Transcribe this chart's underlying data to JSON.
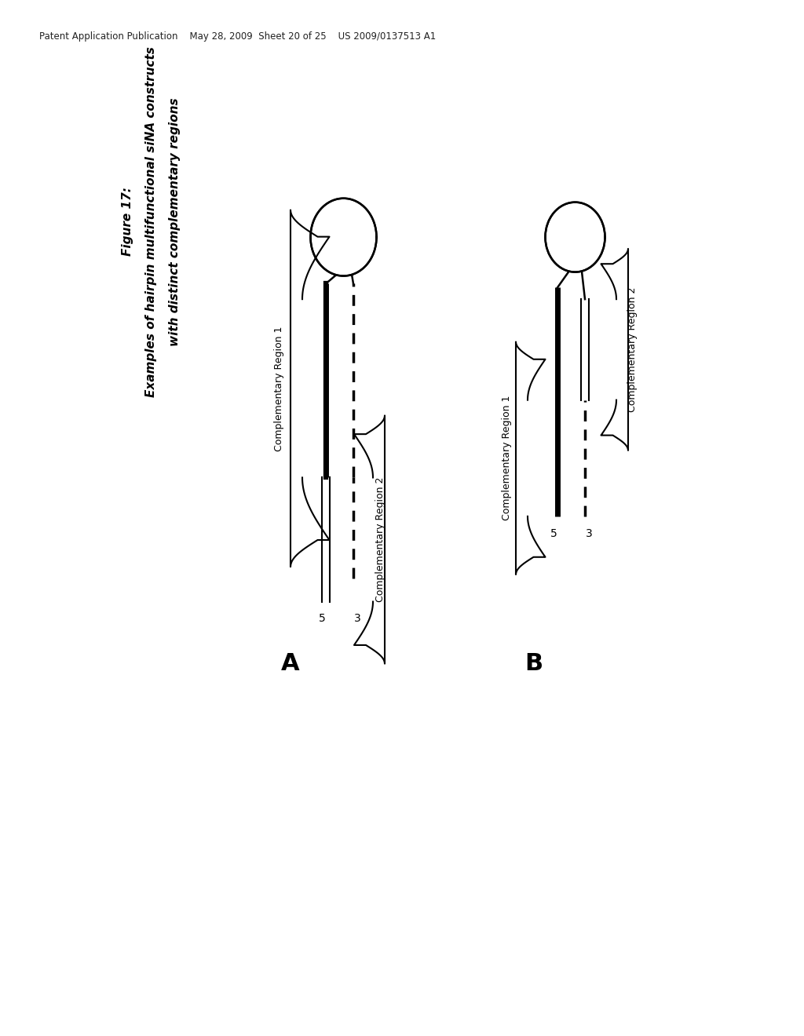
{
  "bg_color": "#ffffff",
  "header_text": "Patent Application Publication    May 28, 2009  Sheet 20 of 25    US 2009/0137513 A1",
  "figure_label": "Figure 17:",
  "figure_title_line1": "Examples of hairpin multifunctional siNA constructs",
  "figure_title_line2": "with distinct complementary regions",
  "label_A": "A",
  "label_B": "B",
  "comp_region1_A": "Complementary Region 1",
  "comp_region2_A": "Complementary Region 2",
  "comp_region1_B": "Complementary Region 1",
  "comp_region2_B": "Complementary Region 2",
  "label_5_A": "5",
  "label_3_A": "3",
  "label_5_B": "5",
  "label_3_B": "3"
}
